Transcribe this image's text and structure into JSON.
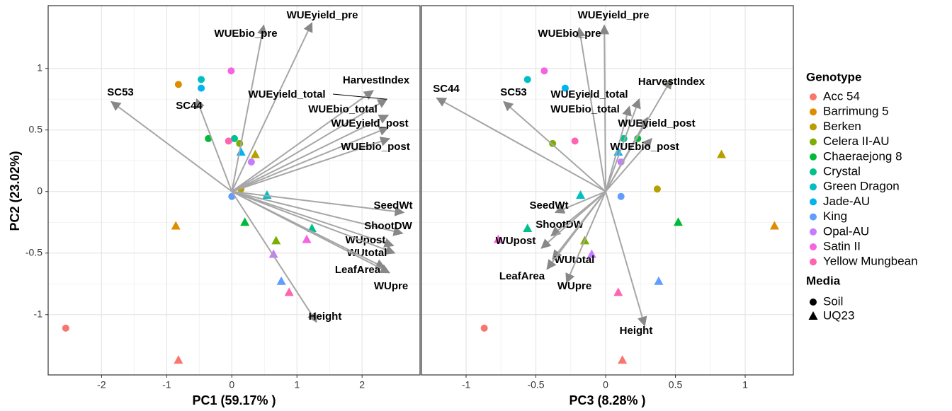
{
  "chart_data": [
    {
      "type": "biplot",
      "x_label": "PC1 (59.17% )",
      "y_label": "PC2 (23.02%)",
      "xlim": [
        -2.82,
        2.89
      ],
      "ylim": [
        -1.49,
        1.51
      ],
      "xticks": [
        -2,
        -1,
        0,
        1,
        2
      ],
      "yticks": [
        -1,
        -0.5,
        0,
        0.5,
        1
      ],
      "grid": true,
      "series": [
        {
          "color": "#F8766D",
          "x": [
            -2.55,
            -0.82
          ],
          "values": [
            -1.11,
            -1.37
          ]
        },
        {
          "color": "#DE8C00",
          "x": [
            -0.82,
            -0.86
          ],
          "values": [
            0.87,
            -0.28
          ]
        },
        {
          "color": "#B79F00",
          "x": [
            0.14,
            0.36
          ],
          "values": [
            0.02,
            0.3
          ]
        },
        {
          "color": "#7CAE00",
          "x": [
            0.12,
            0.68
          ],
          "values": [
            0.39,
            -0.4
          ]
        },
        {
          "color": "#00BA38",
          "x": [
            -0.36,
            0.2
          ],
          "values": [
            0.43,
            -0.25
          ]
        },
        {
          "color": "#00C08B",
          "x": [
            0.04,
            1.23
          ],
          "values": [
            0.43,
            -0.3
          ]
        },
        {
          "color": "#00BFC4",
          "x": [
            -0.47,
            0.54
          ],
          "values": [
            0.91,
            -0.03
          ]
        },
        {
          "color": "#00B4F0",
          "x": [
            -0.47,
            0.14
          ],
          "values": [
            0.84,
            0.32
          ]
        },
        {
          "color": "#619CFF",
          "x": [
            0.0,
            0.76
          ],
          "values": [
            -0.04,
            -0.73
          ]
        },
        {
          "color": "#C77CFF",
          "x": [
            0.3,
            0.64
          ],
          "values": [
            0.24,
            -0.51
          ]
        },
        {
          "color": "#F564E3",
          "x": [
            -0.01,
            1.15
          ],
          "values": [
            0.98,
            -0.39
          ]
        },
        {
          "color": "#FF64B0",
          "x": [
            -0.05,
            0.88
          ],
          "values": [
            0.41,
            -0.82
          ]
        }
      ],
      "arrow_color": "#a6a6a6",
      "loadings": [
        {
          "name": "WUEyield_pre",
          "x": 1.23,
          "y": 1.37
        },
        {
          "name": "WUEbio_pre",
          "x": 0.49,
          "y": 1.35
        },
        {
          "name": "SC53",
          "x": -1.85,
          "y": 0.73
        },
        {
          "name": "SC44",
          "x": -0.54,
          "y": 0.75
        },
        {
          "name": "HarvestIndex",
          "x": 2.17,
          "y": 0.82
        },
        {
          "name": "WUEyield_total",
          "x": 2.38,
          "y": 0.75
        },
        {
          "name": "WUEbio_total",
          "x": 2.4,
          "y": 0.62
        },
        {
          "name": "WUEyield_post",
          "x": 2.4,
          "y": 0.52
        },
        {
          "name": "WUEbio_post",
          "x": 2.42,
          "y": 0.43
        },
        {
          "name": "SeedWt",
          "x": 2.64,
          "y": -0.17
        },
        {
          "name": "ShootDW",
          "x": 2.62,
          "y": -0.34
        },
        {
          "name": "WUpost",
          "x": 2.48,
          "y": -0.44
        },
        {
          "name": "WUtotal",
          "x": 2.5,
          "y": -0.5
        },
        {
          "name": "LeafArea",
          "x": 2.35,
          "y": -0.62
        },
        {
          "name": "WUpre",
          "x": 2.42,
          "y": -0.66
        },
        {
          "name": "Height",
          "x": 1.3,
          "y": -1.06
        }
      ]
    },
    {
      "type": "biplot",
      "x_label": "PC3 (8.28% )",
      "xlim": [
        -1.32,
        1.345
      ],
      "ylim": [
        -1.49,
        1.51
      ],
      "xticks": [
        -1,
        -0.5,
        0,
        0.5,
        1
      ],
      "grid": true,
      "legend_title": "Genotype",
      "media_title": "Media",
      "media": [
        {
          "name": "Soil",
          "shape": "circle"
        },
        {
          "name": "UQ23",
          "shape": "triangle"
        }
      ],
      "series": [
        {
          "name": "Acc 54",
          "color": "#F8766D",
          "x": [
            -0.87,
            0.12
          ],
          "values": [
            -1.11,
            -1.37
          ]
        },
        {
          "name": "Barrimung 5",
          "color": "#DE8C00",
          "x": [
            0.45,
            1.21
          ],
          "values": [
            0.87,
            -0.28
          ]
        },
        {
          "name": "Berken",
          "color": "#B79F00",
          "x": [
            0.37,
            0.83
          ],
          "values": [
            0.02,
            0.3
          ]
        },
        {
          "name": "Celera II-AU",
          "color": "#7CAE00",
          "x": [
            -0.38,
            -0.15
          ],
          "values": [
            0.39,
            -0.4
          ]
        },
        {
          "name": "Chaeraejong 8",
          "color": "#00BA38",
          "x": [
            0.23,
            0.52
          ],
          "values": [
            0.43,
            -0.25
          ]
        },
        {
          "name": "Crystal",
          "color": "#00C08B",
          "x": [
            0.13,
            -0.56
          ],
          "values": [
            0.43,
            -0.3
          ]
        },
        {
          "name": "Green Dragon",
          "color": "#00BFC4",
          "x": [
            -0.56,
            -0.18
          ],
          "values": [
            0.91,
            -0.03
          ]
        },
        {
          "name": "Jade-AU",
          "color": "#00B4F0",
          "x": [
            -0.29,
            0.09
          ],
          "values": [
            0.84,
            0.32
          ]
        },
        {
          "name": "King",
          "color": "#619CFF",
          "x": [
            0.11,
            0.38
          ],
          "values": [
            -0.04,
            -0.73
          ]
        },
        {
          "name": "Opal-AU",
          "color": "#C77CFF",
          "x": [
            0.11,
            -0.1
          ],
          "values": [
            0.24,
            -0.51
          ]
        },
        {
          "name": "Satin II",
          "color": "#F564E3",
          "x": [
            -0.44,
            -0.77
          ],
          "values": [
            0.98,
            -0.39
          ]
        },
        {
          "name": "Yellow Mungbean",
          "color": "#FF64B0",
          "x": [
            -0.22,
            0.09
          ],
          "values": [
            0.41,
            -0.82
          ]
        }
      ],
      "arrow_color": "#a6a6a6",
      "loadings": [
        {
          "name": "WUEyield_pre",
          "x": -0.01,
          "y": 1.35
        },
        {
          "name": "WUEbio_pre",
          "x": -0.19,
          "y": 1.33
        },
        {
          "name": "SC53",
          "x": -0.73,
          "y": 0.73
        },
        {
          "name": "SC44",
          "x": -1.21,
          "y": 0.76
        },
        {
          "name": "HarvestIndex",
          "x": 0.47,
          "y": 0.91
        },
        {
          "name": "WUEyield_total",
          "x": 0.24,
          "y": 0.75
        },
        {
          "name": "WUEbio_total",
          "x": 0.17,
          "y": 0.69
        },
        {
          "name": "WUEyield_post",
          "x": 0.3,
          "y": 0.6
        },
        {
          "name": "WUEbio_post",
          "x": 0.33,
          "y": 0.43
        },
        {
          "name": "SeedWt",
          "x": -0.36,
          "y": -0.17
        },
        {
          "name": "ShootDW",
          "x": -0.39,
          "y": -0.36
        },
        {
          "name": "WUpost",
          "x": -0.46,
          "y": -0.46
        },
        {
          "name": "WUtotal",
          "x": -0.38,
          "y": -0.55
        },
        {
          "name": "LeafArea",
          "x": -0.42,
          "y": -0.63
        },
        {
          "name": "WUpre",
          "x": -0.28,
          "y": -0.74
        },
        {
          "name": "Height",
          "x": 0.28,
          "y": -1.09
        }
      ]
    }
  ]
}
